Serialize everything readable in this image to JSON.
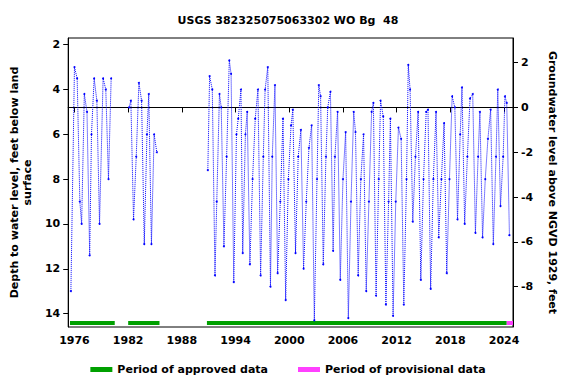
{
  "chart_data": {
    "type": "line",
    "title": "USGS 382325075063302 WO Bg  48",
    "y_label": "Depth to water level, feet below land\nsurface",
    "y2_label": "Groundwater level above NGVD 1929, feet",
    "xlim": [
      1975.3,
      2025.0
    ],
    "xticks": [
      1976,
      1982,
      1988,
      1994,
      2000,
      2006,
      2012,
      2018,
      2024
    ],
    "ylim": [
      14.6,
      1.7
    ],
    "yticks": [
      2,
      4,
      6,
      8,
      10,
      12,
      14
    ],
    "y2lim": [
      -9.8,
      3.1
    ],
    "y2ticks": [
      2,
      0,
      -2,
      -4,
      -6,
      -8
    ],
    "grid": false,
    "series": [
      {
        "color": "#0000ff",
        "marker": "circle",
        "line_style": "dotted",
        "x": [
          1975.6,
          1976.0,
          1976.3,
          1976.6,
          1976.8,
          1977.1,
          1977.4,
          1977.7,
          1977.9,
          1978.2,
          1978.5,
          1978.8,
          1979.2,
          1979.5,
          1979.8,
          1980.1,
          1981.0,
          1982.1,
          1982.3,
          1982.6,
          1982.9,
          1983.2,
          1983.5,
          1983.8,
          1984.1,
          1984.3,
          1984.6,
          1984.9,
          1985.2,
          1988.0,
          1990.9,
          1991.1,
          1991.4,
          1991.7,
          1991.9,
          1992.2,
          1992.4,
          1992.7,
          1993.0,
          1993.3,
          1993.5,
          1993.8,
          1994.1,
          1994.3,
          1994.6,
          1994.8,
          1995.1,
          1995.3,
          1995.6,
          1995.9,
          1996.2,
          1996.5,
          1996.8,
          1997.1,
          1997.3,
          1997.6,
          1997.9,
          1998.1,
          1998.4,
          1998.7,
          1999.0,
          1999.3,
          1999.6,
          1999.9,
          2000.2,
          2000.4,
          2000.7,
          2001.0,
          2001.3,
          2001.6,
          2001.9,
          2002.2,
          2002.5,
          2002.8,
          2003.1,
          2003.3,
          2003.5,
          2003.8,
          2004.1,
          2004.3,
          2004.6,
          2004.9,
          2005.1,
          2005.4,
          2005.7,
          2006.0,
          2006.3,
          2006.6,
          2006.9,
          2007.2,
          2007.4,
          2007.7,
          2008.0,
          2008.3,
          2008.6,
          2008.9,
          2009.2,
          2009.4,
          2009.7,
          2010.0,
          2010.2,
          2010.5,
          2010.8,
          2011.1,
          2011.3,
          2011.6,
          2011.9,
          2012.2,
          2012.5,
          2012.8,
          2013.1,
          2013.3,
          2013.5,
          2013.8,
          2014.1,
          2014.4,
          2014.7,
          2015.0,
          2015.3,
          2015.5,
          2015.8,
          2016.1,
          2016.4,
          2016.7,
          2017.0,
          2017.3,
          2017.6,
          2017.9,
          2018.2,
          2018.5,
          2018.8,
          2019.1,
          2019.3,
          2019.6,
          2019.9,
          2020.2,
          2020.5,
          2020.8,
          2021.1,
          2021.3,
          2021.6,
          2021.9,
          2022.2,
          2022.5,
          2022.8,
          2023.1,
          2023.3,
          2023.6,
          2023.9,
          2024.1,
          2024.3,
          2024.6
        ],
        "values": [
          13,
          3.0,
          3.5,
          9,
          10,
          4.2,
          5,
          11.4,
          6,
          3.5,
          4.5,
          10,
          3.5,
          4,
          8,
          3.5,
          null,
          4.8,
          4.5,
          9.8,
          7,
          3.7,
          4.5,
          10.9,
          6,
          4.2,
          10.9,
          6,
          6.8,
          null,
          7.6,
          3.4,
          4,
          12.3,
          9,
          4.2,
          4.8,
          11,
          7,
          2.7,
          3.3,
          12.6,
          6,
          5.3,
          4,
          11.3,
          6,
          5,
          11.8,
          8,
          5.3,
          4,
          12.3,
          7,
          4,
          3,
          12.8,
          7,
          3.8,
          12.2,
          9,
          5.3,
          13.4,
          8,
          5.6,
          4.9,
          11.3,
          7,
          5.8,
          12,
          9,
          6.6,
          5.6,
          14.3,
          8,
          3.8,
          4.3,
          11.8,
          7,
          4.8,
          4.1,
          11.2,
          7,
          5,
          12.5,
          8,
          5.9,
          14.2,
          9,
          5,
          5.9,
          12.3,
          8,
          6,
          13,
          9,
          5,
          4.6,
          13.2,
          8,
          4.5,
          5.2,
          13.6,
          9,
          5.3,
          14.1,
          9,
          5.7,
          6.2,
          13.6,
          8,
          2.9,
          4,
          9.9,
          7,
          5,
          12.5,
          8,
          5,
          4.9,
          12.9,
          8,
          5,
          10.6,
          8,
          5.5,
          12.2,
          8,
          4.3,
          4.8,
          9.8,
          6,
          3.9,
          10,
          7,
          4.4,
          4.2,
          10.4,
          7,
          5,
          10.6,
          8,
          6.2,
          4.9,
          10.9,
          7,
          4,
          9.2,
          7,
          4.3,
          4.6,
          10.5
        ]
      }
    ],
    "periods": [
      {
        "name": "Period of approved data",
        "color": "#00a000",
        "ranges": [
          [
            1975.5,
            1980.5
          ],
          [
            1982.0,
            1985.5
          ],
          [
            1990.8,
            2024.3
          ]
        ]
      },
      {
        "name": "Period of provisional data",
        "color": "#ff40ff",
        "ranges": [
          [
            2024.3,
            2025.0
          ]
        ]
      }
    ]
  }
}
